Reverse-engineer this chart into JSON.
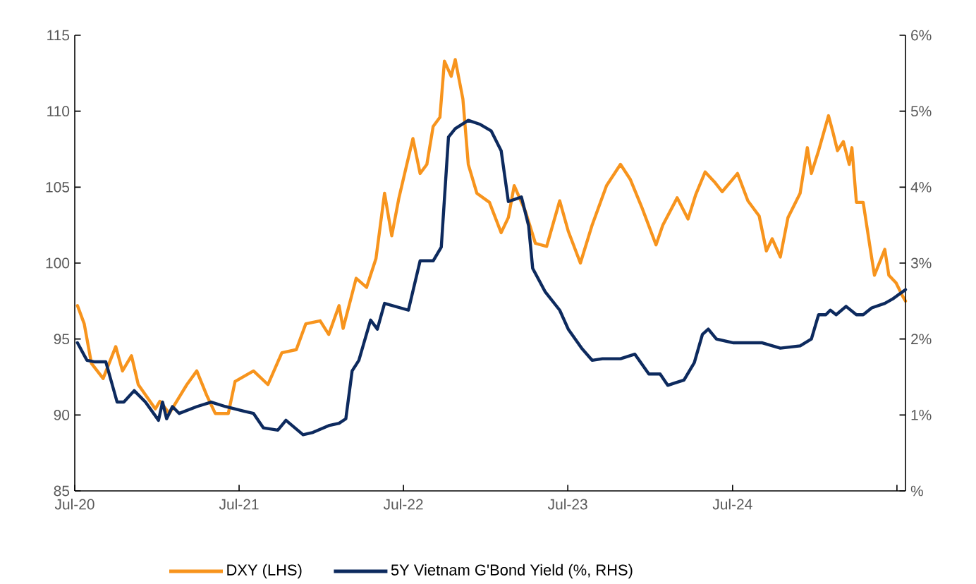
{
  "chart_data": {
    "type": "line",
    "legend": "bottom",
    "xlim": [
      "2020-07-01",
      "2025-07-20"
    ],
    "xticks": [
      {
        "value": "2020-07-01",
        "label": "Jul-20"
      },
      {
        "value": "2021-07-01",
        "label": "Jul-21"
      },
      {
        "value": "2022-07-01",
        "label": "Jul-22"
      },
      {
        "value": "2023-07-01",
        "label": "Jul-23"
      },
      {
        "value": "2024-07-01",
        "label": "Jul-24"
      },
      {
        "value": "2025-07-01",
        "label": null
      }
    ],
    "ylim": [
      85,
      115
    ],
    "yticks": [
      85,
      90,
      95,
      100,
      105,
      110,
      115
    ],
    "y2lim": [
      0,
      6
    ],
    "y2ticks": [
      {
        "value": 0,
        "label": "%"
      },
      {
        "value": 1,
        "label": "1%"
      },
      {
        "value": 2,
        "label": "2%"
      },
      {
        "value": 3,
        "label": "3%"
      },
      {
        "value": 4,
        "label": "4%"
      },
      {
        "value": 5,
        "label": "5%"
      },
      {
        "value": 6,
        "label": "6%"
      }
    ],
    "series": [
      {
        "name": "DXY (LHS)",
        "color": "#f7941d",
        "x": [
          "2020-07-07",
          "2020-07-22",
          "2020-08-07",
          "2020-09-02",
          "2020-09-30",
          "2020-10-15",
          "2020-11-04",
          "2020-11-19",
          "2020-12-27",
          "2021-01-06",
          "2021-01-27",
          "2021-03-07",
          "2021-03-29",
          "2021-04-20",
          "2021-05-09",
          "2021-06-07",
          "2021-06-22",
          "2021-08-02",
          "2021-09-03",
          "2021-10-04",
          "2021-11-05",
          "2021-11-26",
          "2021-12-28",
          "2022-01-16",
          "2022-02-08",
          "2022-02-17",
          "2022-03-18",
          "2022-04-10",
          "2022-05-01",
          "2022-05-20",
          "2022-06-05",
          "2022-06-21",
          "2022-07-22",
          "2022-08-07",
          "2022-08-22",
          "2022-09-05",
          "2022-09-20",
          "2022-09-30",
          "2022-10-15",
          "2022-10-24",
          "2022-11-10",
          "2022-11-22",
          "2022-12-11",
          "2023-01-08",
          "2023-02-03",
          "2023-02-19",
          "2023-03-04",
          "2023-03-29",
          "2023-04-20",
          "2023-05-15",
          "2023-06-13",
          "2023-07-02",
          "2023-07-29",
          "2023-08-24",
          "2023-09-25",
          "2023-10-26",
          "2023-11-17",
          "2023-12-12",
          "2024-01-13",
          "2024-01-28",
          "2024-02-29",
          "2024-03-24",
          "2024-04-10",
          "2024-05-01",
          "2024-05-23",
          "2024-06-08",
          "2024-07-12",
          "2024-08-04",
          "2024-08-29",
          "2024-09-14",
          "2024-09-27",
          "2024-10-15",
          "2024-11-01",
          "2024-11-28",
          "2024-12-14",
          "2024-12-23",
          "2025-01-08",
          "2025-01-30",
          "2025-02-09",
          "2025-02-19",
          "2025-03-04",
          "2025-03-17",
          "2025-03-23",
          "2025-04-02",
          "2025-04-17",
          "2025-05-03",
          "2025-05-12",
          "2025-06-04",
          "2025-06-13",
          "2025-06-29",
          "2025-07-14",
          "2025-07-20"
        ],
        "values": [
          97.2,
          96.0,
          93.4,
          92.4,
          94.5,
          92.9,
          93.9,
          92.0,
          90.4,
          90.9,
          90.1,
          92.0,
          92.9,
          91.3,
          90.1,
          90.1,
          92.2,
          92.9,
          92.0,
          94.1,
          94.3,
          96.0,
          96.2,
          95.3,
          97.2,
          95.7,
          99.0,
          98.4,
          100.3,
          104.6,
          101.8,
          104.3,
          108.2,
          105.9,
          106.5,
          109.0,
          109.6,
          113.3,
          112.3,
          113.4,
          110.8,
          106.5,
          104.6,
          104.0,
          102.0,
          103.0,
          105.1,
          103.4,
          101.3,
          101.1,
          104.1,
          102.1,
          100.0,
          102.5,
          105.1,
          106.5,
          105.5,
          103.7,
          101.2,
          102.5,
          104.3,
          102.9,
          104.5,
          106.0,
          105.3,
          104.7,
          105.9,
          104.1,
          103.1,
          100.8,
          101.6,
          100.4,
          103.0,
          104.6,
          107.6,
          105.9,
          107.4,
          109.7,
          108.6,
          107.4,
          108.0,
          106.5,
          107.6,
          104.0,
          104.0,
          100.9,
          99.2,
          100.9,
          99.2,
          98.7,
          97.8,
          97.5
        ]
      },
      {
        "name": "5Y Vietnam G'Bond Yield (%, RHS)",
        "color": "#0d2a5e",
        "axis": "y2",
        "x": [
          "2020-07-07",
          "2020-07-28",
          "2020-08-13",
          "2020-09-08",
          "2020-10-03",
          "2020-10-18",
          "2020-11-10",
          "2020-12-05",
          "2021-01-03",
          "2021-01-12",
          "2021-01-21",
          "2021-02-03",
          "2021-02-18",
          "2021-03-29",
          "2021-04-30",
          "2021-06-01",
          "2021-07-11",
          "2021-08-02",
          "2021-08-24",
          "2021-09-25",
          "2021-10-13",
          "2021-11-20",
          "2021-12-12",
          "2022-01-16",
          "2022-02-08",
          "2022-02-23",
          "2022-03-09",
          "2022-03-24",
          "2022-04-19",
          "2022-05-04",
          "2022-05-20",
          "2022-07-12",
          "2022-08-07",
          "2022-09-05",
          "2022-09-23",
          "2022-10-09",
          "2022-10-24",
          "2022-11-22",
          "2022-12-17",
          "2023-01-12",
          "2023-02-03",
          "2023-02-19",
          "2023-03-20",
          "2023-04-05",
          "2023-04-14",
          "2023-05-12",
          "2023-06-13",
          "2023-07-02",
          "2023-08-02",
          "2023-08-24",
          "2023-09-16",
          "2023-10-26",
          "2023-11-27",
          "2023-12-28",
          "2024-01-22",
          "2024-02-08",
          "2024-02-23",
          "2024-03-15",
          "2024-04-07",
          "2024-04-25",
          "2024-05-08",
          "2024-05-26",
          "2024-07-03",
          "2024-09-05",
          "2024-10-15",
          "2024-11-28",
          "2024-12-23",
          "2025-01-08",
          "2025-01-24",
          "2025-02-03",
          "2025-02-16",
          "2025-03-10",
          "2025-04-02",
          "2025-04-17",
          "2025-05-06",
          "2025-06-04",
          "2025-06-22",
          "2025-07-20"
        ],
        "values": [
          1.95,
          1.72,
          1.7,
          1.7,
          1.17,
          1.17,
          1.32,
          1.17,
          0.93,
          1.17,
          0.95,
          1.11,
          1.02,
          1.11,
          1.17,
          1.11,
          1.05,
          1.02,
          0.83,
          0.8,
          0.93,
          0.74,
          0.77,
          0.86,
          0.89,
          0.95,
          1.58,
          1.72,
          2.25,
          2.13,
          2.47,
          2.38,
          3.03,
          3.03,
          3.21,
          4.66,
          4.77,
          4.88,
          4.83,
          4.74,
          4.48,
          3.81,
          3.87,
          3.49,
          2.93,
          2.62,
          2.38,
          2.13,
          1.87,
          1.72,
          1.74,
          1.74,
          1.8,
          1.54,
          1.54,
          1.39,
          1.42,
          1.46,
          1.69,
          2.06,
          2.13,
          2.0,
          1.95,
          1.95,
          1.88,
          1.91,
          2.0,
          2.32,
          2.32,
          2.38,
          2.32,
          2.43,
          2.32,
          2.32,
          2.41,
          2.47,
          2.53,
          2.65
        ]
      }
    ]
  }
}
